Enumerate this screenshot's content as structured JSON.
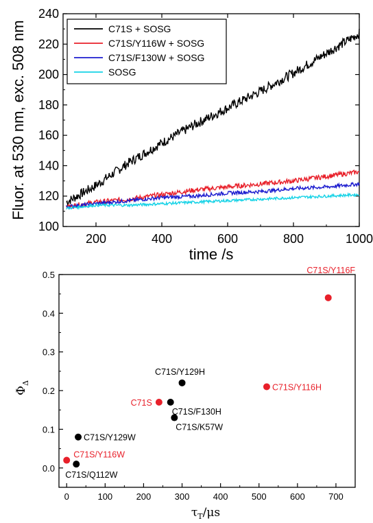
{
  "chart_data": [
    {
      "type": "line",
      "title": "",
      "xlabel": "time /s",
      "ylabel": "Fluor. at 530 nm, exc. 508 nm",
      "xlim": [
        100,
        1000
      ],
      "ylim": [
        100,
        240
      ],
      "xticks": [
        200,
        400,
        600,
        800,
        1000
      ],
      "yticks": [
        100,
        120,
        140,
        160,
        180,
        200,
        220,
        240
      ],
      "legend_position": "top-left",
      "grid": false,
      "series": [
        {
          "name": "C71S + SOSG",
          "color": "#000000",
          "x": [
            110,
            200,
            300,
            400,
            500,
            600,
            700,
            800,
            900,
            1000
          ],
          "y": [
            116,
            127,
            142,
            155,
            167,
            178,
            189,
            201,
            214,
            227
          ]
        },
        {
          "name": "C71S/Y116W + SOSG",
          "color": "#e8202a",
          "x": [
            110,
            200,
            300,
            400,
            500,
            600,
            700,
            800,
            900,
            1000
          ],
          "y": [
            113,
            116,
            118,
            121,
            124,
            126,
            128,
            130,
            133,
            136
          ]
        },
        {
          "name": "C71S/F130W + SOSG",
          "color": "#1b1bcf",
          "x": [
            110,
            200,
            300,
            400,
            500,
            600,
            700,
            800,
            900,
            1000
          ],
          "y": [
            113,
            115,
            117,
            119,
            120,
            122,
            123,
            125,
            126,
            128
          ]
        },
        {
          "name": "SOSG",
          "color": "#14d2e6",
          "x": [
            110,
            200,
            300,
            400,
            500,
            600,
            700,
            800,
            900,
            1000
          ],
          "y": [
            112,
            114,
            114,
            115,
            116,
            117,
            118,
            119,
            120,
            121
          ]
        }
      ]
    },
    {
      "type": "scatter",
      "title": "",
      "xlabel": "τ",
      "xlabel_suffix": "/μs",
      "xlabel_sub": "T",
      "ylabel": "Φ",
      "ylabel_sub": "Δ",
      "xlim": [
        -20,
        750
      ],
      "ylim": [
        -0.05,
        0.5
      ],
      "xticks": [
        0,
        100,
        200,
        300,
        400,
        500,
        600,
        700
      ],
      "yticks": [
        0.0,
        0.1,
        0.2,
        0.3,
        0.4,
        0.5
      ],
      "grid": false,
      "points": [
        {
          "label": "C71S/Y116F",
          "x": 680,
          "y": 0.44,
          "color": "#e8202a",
          "label_pos": "above-left"
        },
        {
          "label": "C71S/Y129H",
          "x": 300,
          "y": 0.22,
          "color": "#000000",
          "label_pos": "above"
        },
        {
          "label": "C71S/Y116H",
          "x": 520,
          "y": 0.21,
          "color": "#e8202a",
          "label_pos": "right"
        },
        {
          "label": "C71S",
          "x": 240,
          "y": 0.17,
          "color": "#e8202a",
          "label_pos": "left"
        },
        {
          "label": "C71S/F130H",
          "x": 270,
          "y": 0.17,
          "color": "#000000",
          "label_pos": "below-right"
        },
        {
          "label": "C71S/K57W",
          "x": 280,
          "y": 0.13,
          "color": "#000000",
          "label_pos": "below-right"
        },
        {
          "label": "C71S/Y129W",
          "x": 30,
          "y": 0.08,
          "color": "#000000",
          "label_pos": "right"
        },
        {
          "label": "C71S/Y116W",
          "x": 0,
          "y": 0.02,
          "color": "#e8202a",
          "label_pos": "above-right"
        },
        {
          "label": "C71S/Q112W",
          "x": 25,
          "y": 0.01,
          "color": "#000000",
          "label_pos": "below"
        }
      ]
    }
  ]
}
